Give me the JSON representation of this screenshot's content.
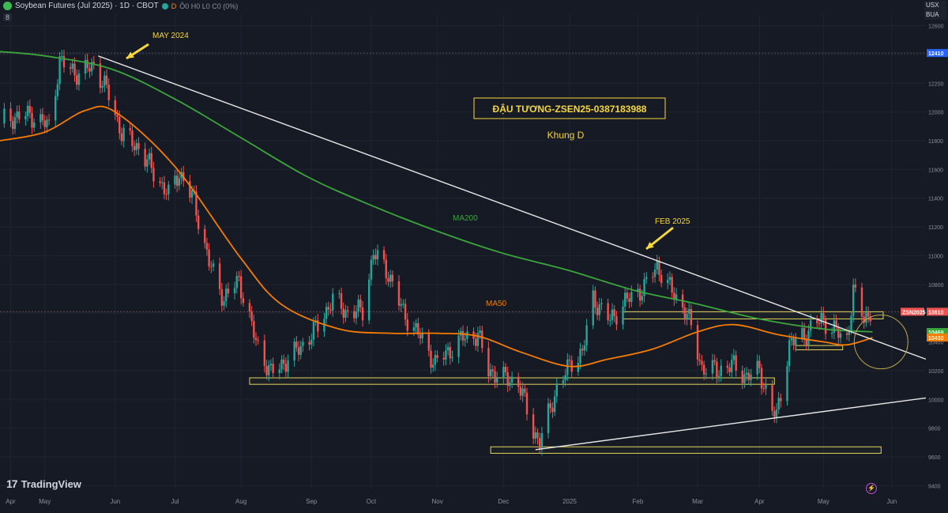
{
  "header": {
    "symbol": "Soybean Futures (Jul 2025) · 1D · CBOT",
    "d_badge": "D",
    "ohlc": "Ô0 H0 L0 C0 (0%)",
    "indicator_count": "8"
  },
  "top_right_menu": [
    "USX",
    "BUA"
  ],
  "brand": "TradingView",
  "colors": {
    "background": "#161a25",
    "grid": "#1f2431",
    "bull": "#26a69a",
    "bear": "#ef5350",
    "ma50": "#f57c00",
    "ma200": "#3ba53b",
    "trendline": "#e6e6e6",
    "annotation": "#f5d63d",
    "zone": "#e3d35a"
  },
  "chart_data": {
    "type": "candlestick",
    "title": "ĐẬU TƯƠNG-ZSEN25-0387183988",
    "subtitle": "Khung D",
    "y_ticks": [
      "12600",
      "12400",
      "12200",
      "12000",
      "11800",
      "11600",
      "11400",
      "11200",
      "11000",
      "10800",
      "10600",
      "10400",
      "10200",
      "10000",
      "9800",
      "9600",
      "9400"
    ],
    "ylim": [
      9380,
      12680
    ],
    "x_ticks": [
      {
        "label": "Apr",
        "date": "2024-04-15"
      },
      {
        "label": "May",
        "date": "2024-05-01"
      },
      {
        "label": "Jun",
        "date": "2024-06-03"
      },
      {
        "label": "Jul",
        "date": "2024-07-01"
      },
      {
        "label": "Aug",
        "date": "2024-08-01"
      },
      {
        "label": "Sep",
        "date": "2024-09-03"
      },
      {
        "label": "Oct",
        "date": "2024-10-01"
      },
      {
        "label": "Nov",
        "date": "2024-11-01"
      },
      {
        "label": "Dec",
        "date": "2024-12-02"
      },
      {
        "label": "2025",
        "date": "2025-01-02"
      },
      {
        "label": "Feb",
        "date": "2025-02-03"
      },
      {
        "label": "Mar",
        "date": "2025-03-03"
      },
      {
        "label": "Apr",
        "date": "2025-04-01"
      },
      {
        "label": "May",
        "date": "2025-05-01"
      },
      {
        "label": "Jun",
        "date": "2025-06-02"
      }
    ],
    "x_range": [
      "2024-04-10",
      "2025-06-18"
    ],
    "close_anchors": [
      [
        "2024-04-12",
        11950
      ],
      [
        "2024-04-24",
        11980
      ],
      [
        "2024-05-03",
        11900
      ],
      [
        "2024-05-08",
        12350
      ],
      [
        "2024-05-17",
        12260
      ],
      [
        "2024-05-24",
        12330
      ],
      [
        "2024-05-31",
        12120
      ],
      [
        "2024-06-06",
        11850
      ],
      [
        "2024-06-14",
        11750
      ],
      [
        "2024-06-21",
        11580
      ],
      [
        "2024-06-28",
        11420
      ],
      [
        "2024-07-03",
        11580
      ],
      [
        "2024-07-10",
        11380
      ],
      [
        "2024-07-17",
        10950
      ],
      [
        "2024-07-24",
        10700
      ],
      [
        "2024-07-31",
        10830
      ],
      [
        "2024-08-08",
        10400
      ],
      [
        "2024-08-15",
        10180
      ],
      [
        "2024-08-23",
        10280
      ],
      [
        "2024-08-30",
        10380
      ],
      [
        "2024-09-06",
        10510
      ],
      [
        "2024-09-13",
        10700
      ],
      [
        "2024-09-20",
        10600
      ],
      [
        "2024-09-27",
        10620
      ],
      [
        "2024-10-02",
        11020
      ],
      [
        "2024-10-09",
        10880
      ],
      [
        "2024-10-16",
        10600
      ],
      [
        "2024-10-23",
        10460
      ],
      [
        "2024-10-31",
        10250
      ],
      [
        "2024-11-06",
        10330
      ],
      [
        "2024-11-13",
        10430
      ],
      [
        "2024-11-20",
        10450
      ],
      [
        "2024-11-25",
        10200
      ],
      [
        "2024-12-02",
        10150
      ],
      [
        "2024-12-09",
        10120
      ],
      [
        "2024-12-16",
        9780
      ],
      [
        "2024-12-19",
        9700
      ],
      [
        "2024-12-27",
        10080
      ],
      [
        "2025-01-03",
        10260
      ],
      [
        "2025-01-08",
        10330
      ],
      [
        "2025-01-13",
        10700
      ],
      [
        "2025-01-21",
        10550
      ],
      [
        "2025-01-28",
        10680
      ],
      [
        "2025-02-06",
        10780
      ],
      [
        "2025-02-12",
        10930
      ],
      [
        "2025-02-19",
        10750
      ],
      [
        "2025-02-26",
        10600
      ],
      [
        "2025-03-05",
        10220
      ],
      [
        "2025-03-12",
        10200
      ],
      [
        "2025-03-19",
        10240
      ],
      [
        "2025-03-26",
        10160
      ],
      [
        "2025-04-01",
        10200
      ],
      [
        "2025-04-07",
        9920
      ],
      [
        "2025-04-09",
        9880
      ],
      [
        "2025-04-15",
        10380
      ],
      [
        "2025-04-23",
        10460
      ],
      [
        "2025-04-30",
        10560
      ],
      [
        "2025-05-07",
        10470
      ],
      [
        "2025-05-12",
        10420
      ],
      [
        "2025-05-15",
        10750
      ],
      [
        "2025-05-20",
        10560
      ],
      [
        "2025-05-23",
        10610
      ]
    ],
    "ma50_points": [
      [
        "2024-04-10",
        11800
      ],
      [
        "2024-05-01",
        11860
      ],
      [
        "2024-05-20",
        12010
      ],
      [
        "2024-06-03",
        12000
      ],
      [
        "2024-07-01",
        11620
      ],
      [
        "2024-08-01",
        10980
      ],
      [
        "2024-08-20",
        10660
      ],
      [
        "2024-09-16",
        10490
      ],
      [
        "2024-10-10",
        10460
      ],
      [
        "2024-11-01",
        10460
      ],
      [
        "2024-11-20",
        10440
      ],
      [
        "2024-12-10",
        10330
      ],
      [
        "2025-01-02",
        10230
      ],
      [
        "2025-01-20",
        10280
      ],
      [
        "2025-02-10",
        10350
      ],
      [
        "2025-03-03",
        10470
      ],
      [
        "2025-03-20",
        10520
      ],
      [
        "2025-04-10",
        10450
      ],
      [
        "2025-05-01",
        10400
      ],
      [
        "2025-05-12",
        10380
      ],
      [
        "2025-05-24",
        10430
      ]
    ],
    "ma200_points": [
      [
        "2024-04-10",
        12420
      ],
      [
        "2024-05-01",
        12390
      ],
      [
        "2024-06-01",
        12300
      ],
      [
        "2024-07-01",
        12090
      ],
      [
        "2024-08-01",
        11820
      ],
      [
        "2024-09-01",
        11550
      ],
      [
        "2024-10-01",
        11350
      ],
      [
        "2024-11-01",
        11170
      ],
      [
        "2024-12-01",
        11020
      ],
      [
        "2025-01-01",
        10900
      ],
      [
        "2025-02-01",
        10760
      ],
      [
        "2025-03-01",
        10670
      ],
      [
        "2025-04-01",
        10560
      ],
      [
        "2025-05-01",
        10490
      ],
      [
        "2025-05-24",
        10470
      ]
    ],
    "trendlines": [
      {
        "name": "resistance",
        "from": [
          "2024-05-26",
          12390
        ],
        "to": [
          "2025-06-18",
          10280
        ]
      },
      {
        "name": "support",
        "from": [
          "2024-12-17",
          9650
        ],
        "to": [
          "2025-06-18",
          10010
        ]
      }
    ],
    "zones": [
      {
        "from": "2025-01-27",
        "to": "2025-05-29",
        "top": 10610,
        "bottom": 10560
      },
      {
        "from": "2024-08-05",
        "to": "2025-04-08",
        "top": 10150,
        "bottom": 10105
      },
      {
        "from": "2024-11-26",
        "to": "2025-05-28",
        "top": 9670,
        "bottom": 9625
      },
      {
        "from": "2025-04-18",
        "to": "2025-05-10",
        "top": 10375,
        "bottom": 10345
      }
    ],
    "circle": {
      "center": [
        "2025-05-28",
        10400
      ],
      "r_x": 4
    }
  },
  "annotations": {
    "may2024": "MAY 2024",
    "feb2025": "FEB 2025",
    "ma200": "MA200",
    "ma50": "MA50"
  },
  "price_tags": [
    {
      "label": "12410",
      "value": 12410,
      "bg": "#2962ff",
      "fg": "#ffffff"
    },
    {
      "label": "ZSN2025",
      "value": 10610,
      "bg": "#ef5350",
      "fg": "#ffffff",
      "left": true
    },
    {
      "label": "10610",
      "value": 10610,
      "bg": "#ef5350",
      "fg": "#ffffff"
    },
    {
      "label": "10469",
      "value": 10469,
      "bg": "#3ba53b",
      "fg": "#ffffff"
    },
    {
      "label": "10430",
      "value": 10430,
      "bg": "#f57c00",
      "fg": "#ffffff"
    }
  ]
}
